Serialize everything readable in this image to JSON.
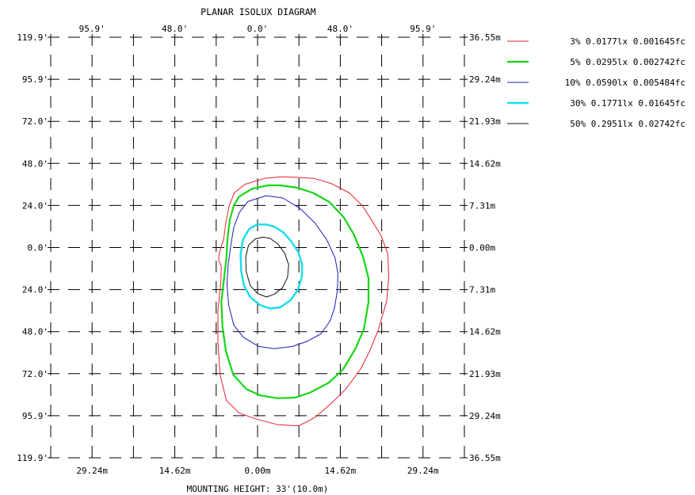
{
  "chart_data": {
    "type": "contour",
    "title": "PLANAR ISOLUX DIAGRAM",
    "footer": "MOUNTING HEIGHT: 33'(10.0m)",
    "top_ticks": [
      "95.9'",
      "48.0'",
      "0.0'",
      "48.0'",
      "95.9'"
    ],
    "left_ticks": [
      "119.9'",
      "95.9'",
      "72.0'",
      "48.0'",
      "24.0'",
      "0.0'",
      "24.0'",
      "48.0'",
      "72.0'",
      "95.9'",
      "119.9'"
    ],
    "right_ticks": [
      "36.55m",
      "29.24m",
      "21.93m",
      "14.62m",
      "7.31m",
      "0.00m",
      "7.31m",
      "14.62m",
      "21.93m",
      "29.24m",
      "36.55m"
    ],
    "bottom_ticks": [
      "29.24m",
      "14.62m",
      "0.00m",
      "14.62m",
      "29.24m"
    ],
    "x_range_m": [
      -36.55,
      36.55
    ],
    "y_range_m": [
      -36.55,
      36.55
    ],
    "grid": "dashed",
    "legend_position": "top-right",
    "contours": [
      {
        "label": "3% 0.0177lx 0.001645fc",
        "color": "#e8202a",
        "width": 1,
        "points": [
          [
            6.9,
            12.2
          ],
          [
            10.0,
            12.0
          ],
          [
            13.1,
            11.1
          ],
          [
            16.2,
            9.5
          ],
          [
            18.5,
            7.3
          ],
          [
            20.0,
            5.0
          ],
          [
            21.8,
            2.1
          ],
          [
            23.0,
            -1.0
          ],
          [
            23.2,
            -5.0
          ],
          [
            22.8,
            -9.4
          ],
          [
            21.3,
            -14.4
          ],
          [
            20.0,
            -17.6
          ],
          [
            18.3,
            -21.0
          ],
          [
            15.6,
            -24.6
          ],
          [
            12.9,
            -27.2
          ],
          [
            10.2,
            -29.5
          ],
          [
            7.3,
            -31.0
          ],
          [
            3.6,
            -30.8
          ],
          [
            0.0,
            -29.9
          ],
          [
            -3.2,
            -28.8
          ],
          [
            -5.5,
            -26.6
          ],
          [
            -6.6,
            -22.2
          ],
          [
            -7.0,
            -16.6
          ],
          [
            -7.0,
            -11.1
          ],
          [
            -6.5,
            -6.0
          ],
          [
            -6.4,
            -3.3
          ],
          [
            -6.9,
            -2.1
          ],
          [
            -6.7,
            -0.7
          ],
          [
            -6.0,
            1.4
          ],
          [
            -5.6,
            4.3
          ],
          [
            -5.0,
            7.3
          ],
          [
            -4.1,
            9.5
          ],
          [
            -2.2,
            11.0
          ],
          [
            1.2,
            12.0
          ],
          [
            4.1,
            12.3
          ],
          [
            6.9,
            12.2
          ]
        ]
      },
      {
        "label": "5% 0.0295lx 0.002742fc",
        "color": "#16d616",
        "width": 2.2,
        "points": [
          [
            4.0,
            10.8
          ],
          [
            7.0,
            10.4
          ],
          [
            9.8,
            9.5
          ],
          [
            12.7,
            7.9
          ],
          [
            15.2,
            5.3
          ],
          [
            17.0,
            2.3
          ],
          [
            18.6,
            -1.5
          ],
          [
            19.6,
            -5.3
          ],
          [
            19.6,
            -9.5
          ],
          [
            18.8,
            -14.2
          ],
          [
            17.3,
            -17.6
          ],
          [
            15.1,
            -21.2
          ],
          [
            12.6,
            -23.5
          ],
          [
            9.3,
            -25.2
          ],
          [
            6.6,
            -26.1
          ],
          [
            3.5,
            -26.2
          ],
          [
            0.5,
            -25.7
          ],
          [
            -2.0,
            -24.6
          ],
          [
            -4.3,
            -22.1
          ],
          [
            -5.6,
            -18.0
          ],
          [
            -6.2,
            -13.7
          ],
          [
            -6.4,
            -9.4
          ],
          [
            -5.9,
            -5.2
          ],
          [
            -5.5,
            -1.8
          ],
          [
            -5.3,
            1.7
          ],
          [
            -4.9,
            4.8
          ],
          [
            -4.2,
            7.3
          ],
          [
            -3.3,
            8.8
          ],
          [
            -1.0,
            10.2
          ],
          [
            1.8,
            10.8
          ],
          [
            4.0,
            10.8
          ]
        ]
      },
      {
        "label": "10% 0.0590lx 0.005484fc",
        "color": "#1c1cb8",
        "width": 1,
        "points": [
          [
            1.5,
            9.0
          ],
          [
            4.5,
            8.6
          ],
          [
            7.5,
            6.8
          ],
          [
            10.2,
            4.2
          ],
          [
            12.2,
            1.4
          ],
          [
            13.7,
            -1.8
          ],
          [
            14.2,
            -4.5
          ],
          [
            14.1,
            -7.5
          ],
          [
            13.6,
            -10.5
          ],
          [
            12.8,
            -12.8
          ],
          [
            11.2,
            -15.0
          ],
          [
            8.8,
            -16.3
          ],
          [
            6.2,
            -17.2
          ],
          [
            3.0,
            -17.6
          ],
          [
            0.2,
            -17.2
          ],
          [
            -2.5,
            -15.6
          ],
          [
            -4.2,
            -13.5
          ],
          [
            -5.1,
            -10.0
          ],
          [
            -5.4,
            -6.5
          ],
          [
            -5.2,
            -3.0
          ],
          [
            -4.7,
            0.5
          ],
          [
            -4.2,
            3.5
          ],
          [
            -3.2,
            6.1
          ],
          [
            -1.7,
            8.0
          ],
          [
            1.5,
            9.0
          ]
        ]
      },
      {
        "label": "30% 0.1771lx 0.01645fc",
        "color": "#16ddee",
        "width": 2.4,
        "points": [
          [
            1.5,
            4.0
          ],
          [
            3.0,
            3.6
          ],
          [
            4.6,
            2.6
          ],
          [
            6.0,
            1.0
          ],
          [
            7.2,
            -0.8
          ],
          [
            7.9,
            -3.0
          ],
          [
            7.8,
            -5.2
          ],
          [
            7.1,
            -7.4
          ],
          [
            5.8,
            -9.2
          ],
          [
            4.0,
            -10.4
          ],
          [
            2.2,
            -10.6
          ],
          [
            0.4,
            -10.0
          ],
          [
            -1.3,
            -8.6
          ],
          [
            -2.4,
            -6.6
          ],
          [
            -2.9,
            -4.1
          ],
          [
            -3.0,
            -1.2
          ],
          [
            -2.6,
            1.3
          ],
          [
            -1.5,
            3.2
          ],
          [
            -0.1,
            4.0
          ],
          [
            1.5,
            4.0
          ]
        ]
      },
      {
        "label": "50% 0.2951lx 0.02742fc",
        "color": "#111111",
        "width": 1,
        "points": [
          [
            1.0,
            1.8
          ],
          [
            2.2,
            1.6
          ],
          [
            3.6,
            0.6
          ],
          [
            4.8,
            -1.0
          ],
          [
            5.5,
            -3.0
          ],
          [
            5.3,
            -5.2
          ],
          [
            4.4,
            -7.0
          ],
          [
            3.0,
            -8.1
          ],
          [
            1.6,
            -8.6
          ],
          [
            0.0,
            -8.0
          ],
          [
            -1.3,
            -6.6
          ],
          [
            -2.0,
            -4.2
          ],
          [
            -2.1,
            -1.7
          ],
          [
            -1.6,
            0.4
          ],
          [
            -0.4,
            1.5
          ],
          [
            1.0,
            1.8
          ]
        ]
      }
    ]
  }
}
